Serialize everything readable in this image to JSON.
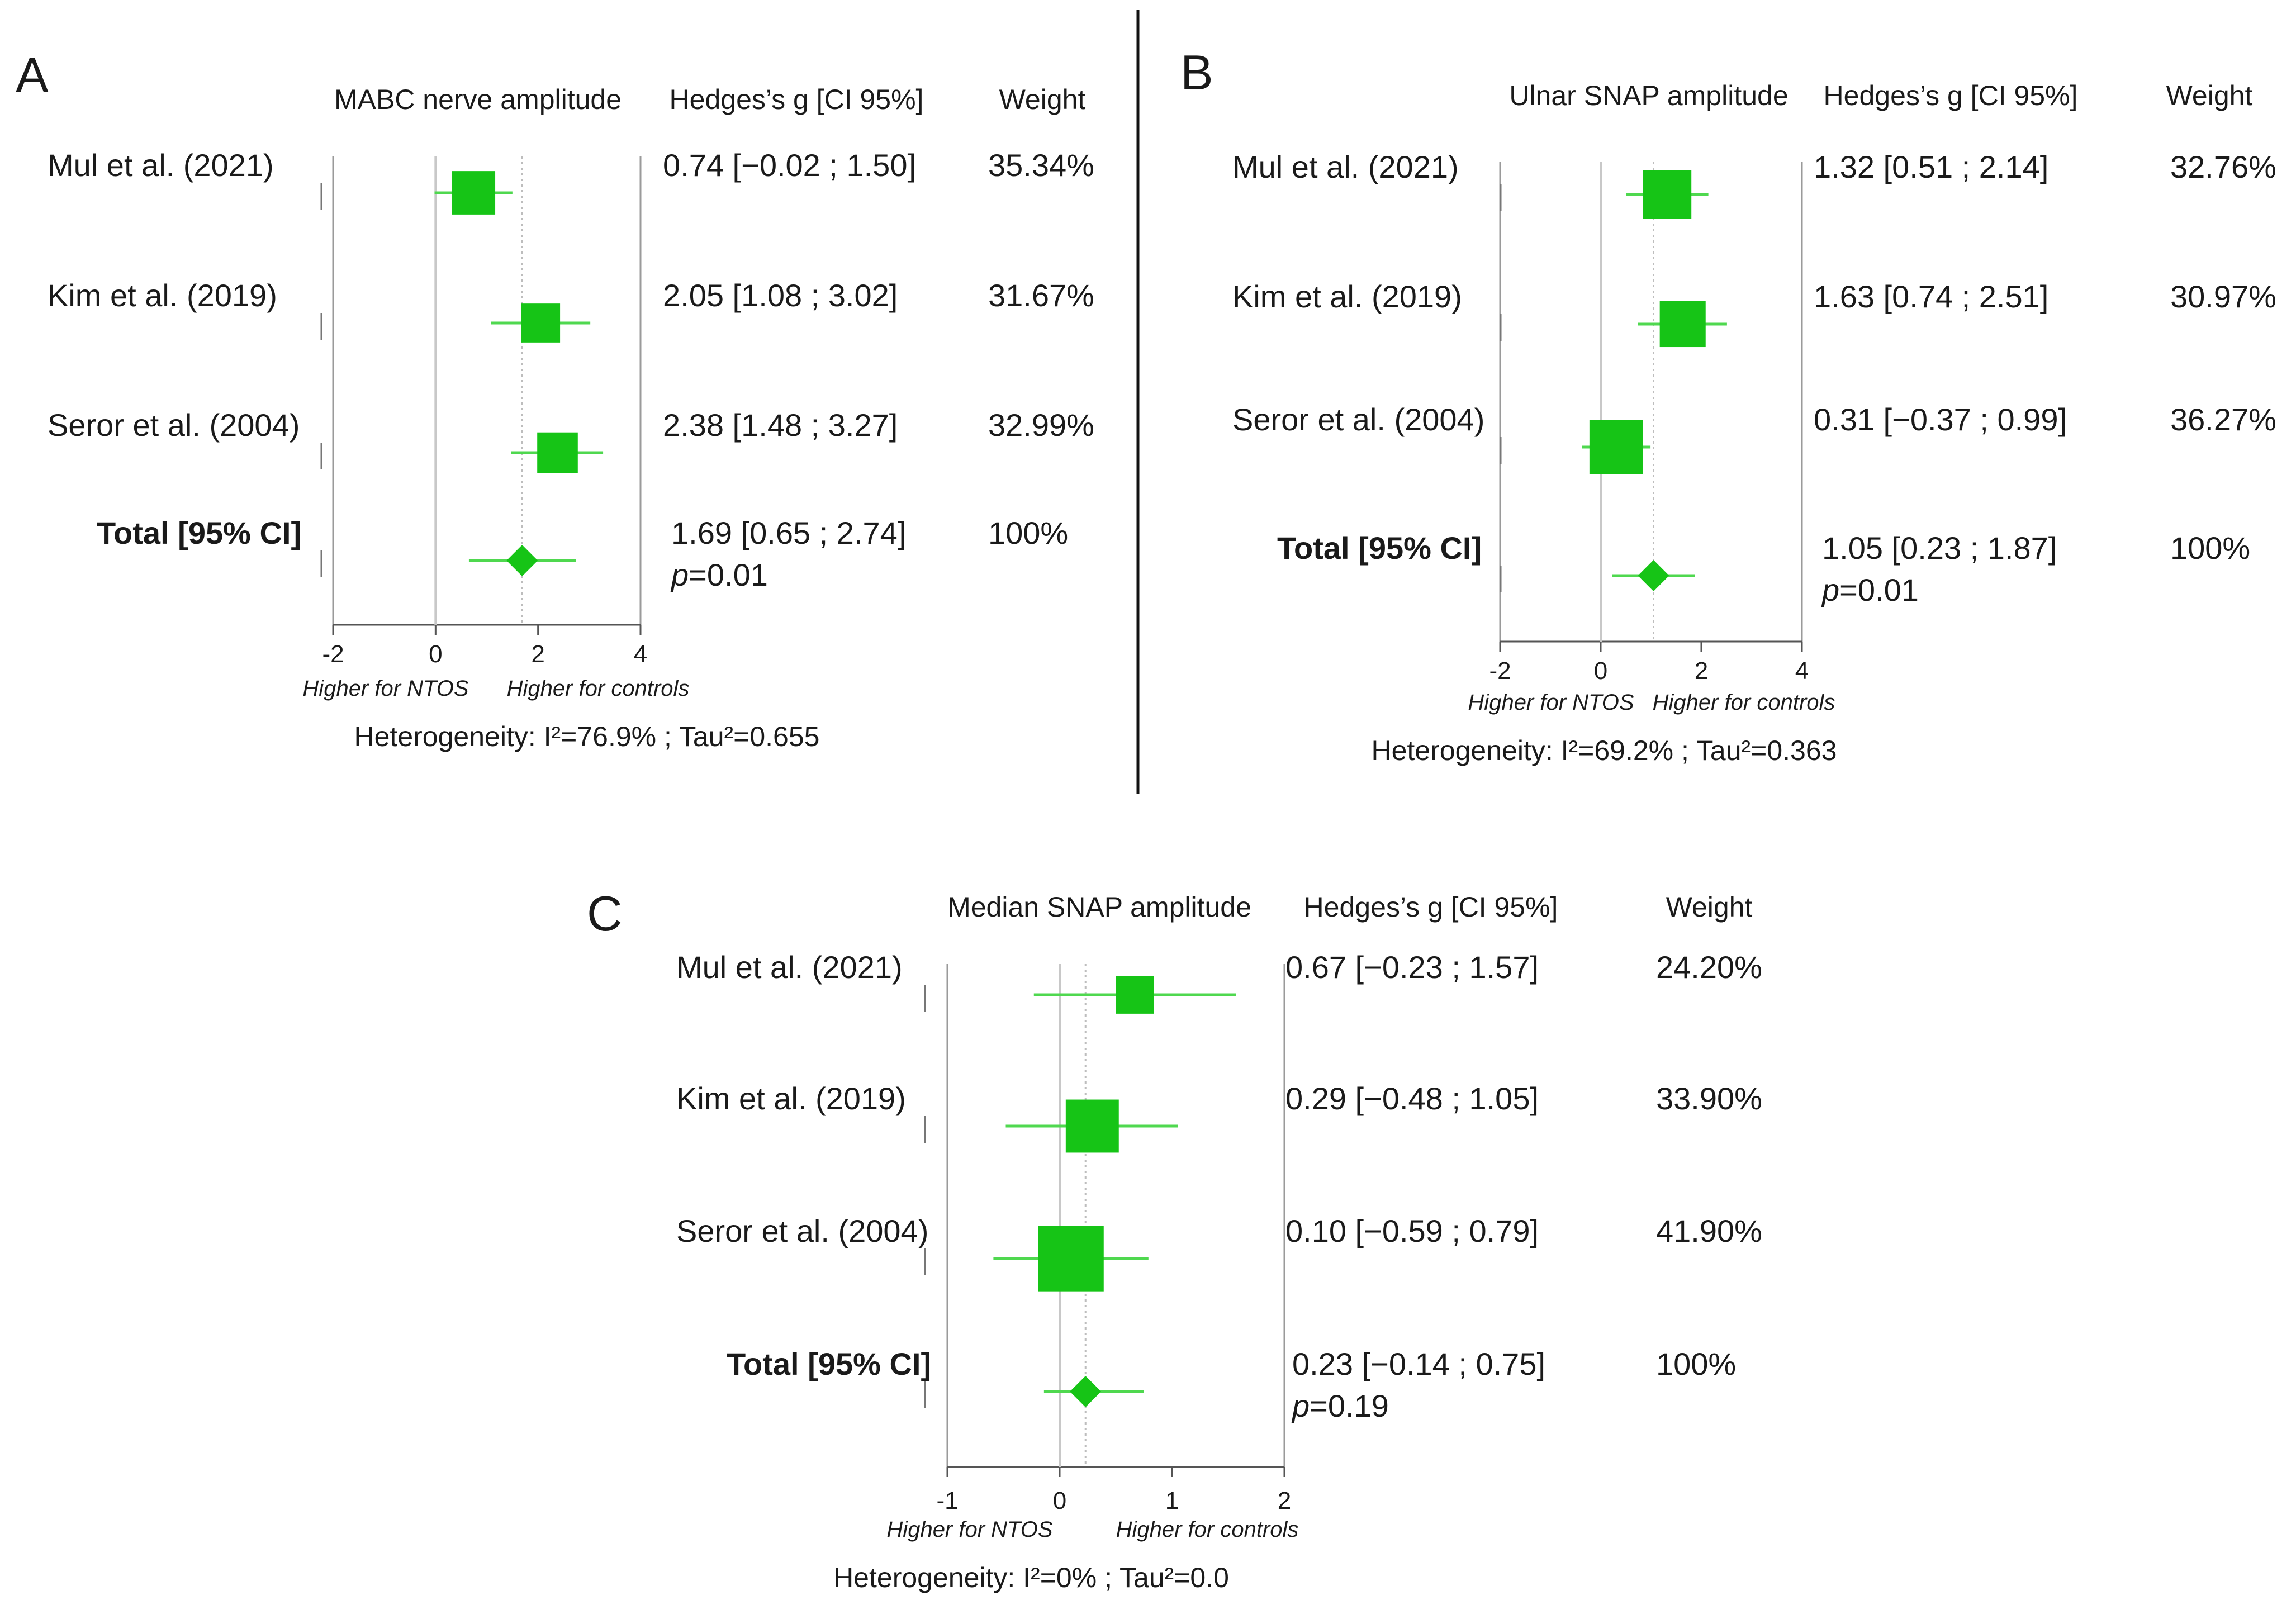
{
  "colors": {
    "marker": "#16c416",
    "ci": "#4fd84f",
    "text": "#1a1a1a",
    "axis": "#9a9a9a"
  },
  "chart_data": [
    {
      "type": "forest",
      "panel": "A",
      "outcome_label": "MABC nerve amplitude",
      "columns": {
        "effect": "Hedges’s g [CI 95%]",
        "weight": "Weight"
      },
      "studies": [
        {
          "name": "Mul et al. (2021)",
          "g": 0.74,
          "lo": -0.02,
          "hi": 1.5,
          "effect_text": "0.74 [−0.02 ; 1.50]",
          "weight": 35.34,
          "weight_text": "35.34%"
        },
        {
          "name": "Kim et al. (2019)",
          "g": 2.05,
          "lo": 1.08,
          "hi": 3.02,
          "effect_text": "2.05 [1.08 ; 3.02]",
          "weight": 31.67,
          "weight_text": "31.67%"
        },
        {
          "name": "Seror et al. (2004)",
          "g": 2.38,
          "lo": 1.48,
          "hi": 3.27,
          "effect_text": "2.38 [1.48 ; 3.27]",
          "weight": 32.99,
          "weight_text": "32.99%"
        }
      ],
      "total": {
        "name": "Total [95% CI]",
        "g": 1.69,
        "lo": 0.65,
        "hi": 2.74,
        "effect_text": "1.69 [0.65 ; 2.74]",
        "weight_text": "100%",
        "p_label": "p",
        "p_text": "=0.01"
      },
      "xlim": [
        -2,
        4
      ],
      "xticks": [
        -2,
        0,
        2,
        4
      ],
      "xtick_labels": [
        "-2",
        "0",
        "2",
        "4"
      ],
      "favours_left": "Higher for NTOS",
      "favours_right": "Higher for controls",
      "heterogeneity": "Heterogeneity: I²=76.9% ; Tau²=0.655"
    },
    {
      "type": "forest",
      "panel": "B",
      "outcome_label": "Ulnar SNAP amplitude",
      "columns": {
        "effect": "Hedges’s g [CI 95%]",
        "weight": "Weight"
      },
      "studies": [
        {
          "name": "Mul et al. (2021)",
          "g": 1.32,
          "lo": 0.51,
          "hi": 2.14,
          "effect_text": "1.32 [0.51 ; 2.14]",
          "weight": 32.76,
          "weight_text": "32.76%"
        },
        {
          "name": "Kim et al. (2019)",
          "g": 1.63,
          "lo": 0.74,
          "hi": 2.51,
          "effect_text": "1.63 [0.74 ; 2.51]",
          "weight": 30.97,
          "weight_text": "30.97%"
        },
        {
          "name": "Seror et al. (2004)",
          "g": 0.31,
          "lo": -0.37,
          "hi": 0.99,
          "effect_text": "0.31 [−0.37 ; 0.99]",
          "weight": 36.27,
          "weight_text": "36.27%"
        }
      ],
      "total": {
        "name": "Total [95% CI]",
        "g": 1.05,
        "lo": 0.23,
        "hi": 1.87,
        "effect_text": "1.05 [0.23 ; 1.87]",
        "weight_text": "100%",
        "p_label": "p",
        "p_text": "=0.01"
      },
      "xlim": [
        -2,
        4
      ],
      "xticks": [
        -2,
        0,
        2,
        4
      ],
      "xtick_labels": [
        "-2",
        "0",
        "2",
        "4"
      ],
      "favours_left": "Higher for NTOS",
      "favours_right": "Higher for controls",
      "heterogeneity": "Heterogeneity: I²=69.2% ; Tau²=0.363"
    },
    {
      "type": "forest",
      "panel": "C",
      "outcome_label": "Median SNAP amplitude",
      "columns": {
        "effect": "Hedges’s g [CI 95%]",
        "weight": "Weight"
      },
      "studies": [
        {
          "name": "Mul et al. (2021)",
          "g": 0.67,
          "lo": -0.23,
          "hi": 1.57,
          "effect_text": "0.67 [−0.23 ; 1.57]",
          "weight": 24.2,
          "weight_text": "24.20%"
        },
        {
          "name": "Kim et al. (2019)",
          "g": 0.29,
          "lo": -0.48,
          "hi": 1.05,
          "effect_text": "0.29 [−0.48 ; 1.05]",
          "weight": 33.9,
          "weight_text": "33.90%"
        },
        {
          "name": "Seror et al. (2004)",
          "g": 0.1,
          "lo": -0.59,
          "hi": 0.79,
          "effect_text": "0.10 [−0.59 ; 0.79]",
          "weight": 41.9,
          "weight_text": "41.90%"
        }
      ],
      "total": {
        "name": "Total [95% CI]",
        "g": 0.23,
        "lo": -0.14,
        "hi": 0.75,
        "effect_text": "0.23 [−0.14 ; 0.75]",
        "weight_text": "100%",
        "p_label": "p",
        "p_text": "=0.19"
      },
      "xlim": [
        -1,
        2
      ],
      "xticks": [
        -1,
        0,
        1,
        2
      ],
      "xtick_labels": [
        "-1",
        "0",
        "1",
        "2"
      ],
      "favours_left": "Higher for NTOS",
      "favours_right": "Higher for controls",
      "heterogeneity": "Heterogeneity: I²=0% ; Tau²=0.0"
    }
  ]
}
